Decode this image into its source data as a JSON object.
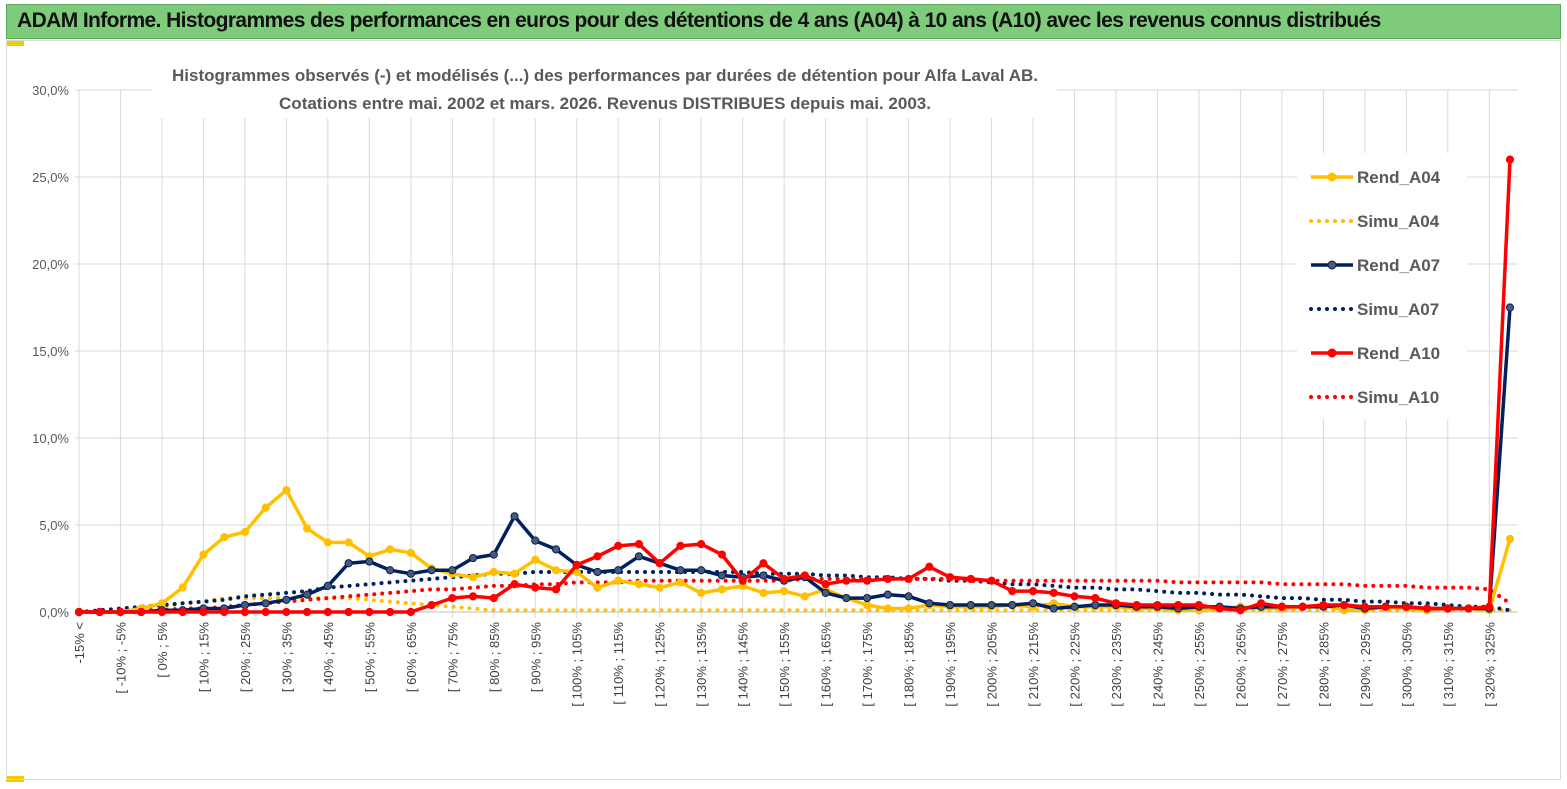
{
  "banner": {
    "title": "ADAM Informe. Histogrammes des performances en euros pour des détentions de 4 ans (A04) à 10 ans (A10) avec les revenus connus distribués"
  },
  "colors": {
    "banner_bg": "#7dcb7b",
    "A04": "#ffc000",
    "A07": "#002060",
    "A10": "#ff0000",
    "grid": "#d9d9d9",
    "axis_text": "#595959",
    "title_text": "#595959"
  },
  "chart_data": {
    "type": "line",
    "title": "Histogrammes observés (-) et modélisés (...) des performances par durées de détention pour Alfa Laval AB.",
    "subtitle": "Cotations entre mai. 2002 et mars. 2026. Revenus DISTRIBUES depuis mai. 2003.",
    "ylim": [
      0,
      30
    ],
    "yticks": [
      0,
      5,
      10,
      15,
      20,
      25,
      30
    ],
    "ytick_labels": [
      "0,0%",
      "5,0%",
      "10,0%",
      "15,0%",
      "20,0%",
      "25,0%",
      "30,0%"
    ],
    "legend_position": "right",
    "x_labels": [
      "-15% <",
      "[ -10% ; -5%",
      "[ 0% ; 5%",
      "[ 10% ; 15%",
      "[ 20% ; 25%",
      "[ 30% ; 35%",
      "[ 40% ; 45%",
      "[ 50% ; 55%",
      "[ 60% ; 65%",
      "[ 70% ; 75%",
      "[ 80% ; 85%",
      "[ 90% ; 95%",
      "[ 100% ; 105%",
      "[ 110% ; 115%",
      "[ 120% ; 125%",
      "[ 130% ; 135%",
      "[ 140% ; 145%",
      "[ 150% ; 155%",
      "[ 160% ; 165%",
      "[ 170% ; 175%",
      "[ 180% ; 185%",
      "[ 190% ; 195%",
      "[ 200% ; 205%",
      "[ 210% ; 215%",
      "[ 220% ; 225%",
      "[ 230% ; 235%",
      "[ 240% ; 245%",
      "[ 250% ; 255%",
      "[ 260% ; 265%",
      "[ 270% ; 275%",
      "[ 280% ; 285%",
      "[ 290% ; 295%",
      "[ 300% ; 305%",
      "[ 310% ; 315%",
      "[ 320% ; 325%"
    ],
    "x_label_indices": [
      0,
      2,
      4,
      6,
      8,
      10,
      12,
      14,
      16,
      18,
      20,
      22,
      24,
      26,
      28,
      30,
      32,
      34,
      36,
      38,
      40,
      42,
      44,
      46,
      48,
      50,
      52,
      54,
      56,
      58,
      60,
      62,
      64,
      66,
      68
    ],
    "n_points": 70,
    "series": [
      {
        "name": "Rend_A04",
        "style": "solid",
        "color": "#ffc000",
        "values": [
          0,
          0,
          0,
          0.2,
          0.5,
          1.4,
          3.3,
          4.3,
          4.6,
          6.0,
          7.0,
          4.8,
          4.0,
          4.0,
          3.2,
          3.6,
          3.4,
          2.5,
          2.2,
          2.0,
          2.3,
          2.2,
          3.0,
          2.4,
          2.3,
          1.4,
          1.8,
          1.6,
          1.4,
          1.7,
          1.1,
          1.3,
          1.5,
          1.1,
          1.2,
          0.9,
          1.3,
          0.8,
          0.4,
          0.2,
          0.2,
          0.4,
          0.3,
          0.3,
          0.3,
          0.4,
          0.3,
          0.5,
          0.3,
          0.3,
          0.3,
          0.2,
          0.2,
          0.1,
          0.1,
          0.2,
          0.3,
          0.2,
          0.2,
          0.3,
          0.4,
          0.1,
          0.1,
          0.3,
          0.2,
          0.1,
          0.2,
          0.2,
          0.1,
          4.2
        ]
      },
      {
        "name": "Simu_A04",
        "style": "dotted",
        "color": "#ffc000",
        "values": [
          0,
          0,
          0,
          0.1,
          0.3,
          0.5,
          0.6,
          0.8,
          0.8,
          0.8,
          0.8,
          0.8,
          0.8,
          0.8,
          0.7,
          0.6,
          0.5,
          0.4,
          0.3,
          0.2,
          0.1,
          0.1,
          0.1,
          0.1,
          0.1,
          0.1,
          0.1,
          0.1,
          0.1,
          0.1,
          0.1,
          0.1,
          0.1,
          0.1,
          0.1,
          0.1,
          0.1,
          0.1,
          0.1,
          0.1,
          0.1,
          0.1,
          0.1,
          0.1,
          0.1,
          0.1,
          0.1,
          0.1,
          0.1,
          0.1,
          0.1,
          0.1,
          0.1,
          0.1,
          0.1,
          0.1,
          0.1,
          0.1,
          0.1,
          0.1,
          0.1,
          0.1,
          0.1,
          0.1,
          0.1,
          0.1,
          0.1,
          0.1,
          0.1,
          0.1
        ]
      },
      {
        "name": "Rend_A07",
        "style": "solid",
        "color": "#002060",
        "values": [
          0,
          0,
          0,
          0,
          0.1,
          0.1,
          0.2,
          0.2,
          0.4,
          0.5,
          0.7,
          1.0,
          1.5,
          2.8,
          2.9,
          2.4,
          2.2,
          2.4,
          2.4,
          3.1,
          3.3,
          5.5,
          4.1,
          3.6,
          2.7,
          2.3,
          2.4,
          3.2,
          2.8,
          2.4,
          2.4,
          2.1,
          2.0,
          2.1,
          1.8,
          2.0,
          1.1,
          0.8,
          0.8,
          1.0,
          0.9,
          0.5,
          0.4,
          0.4,
          0.4,
          0.4,
          0.5,
          0.2,
          0.3,
          0.4,
          0.4,
          0.3,
          0.3,
          0.2,
          0.3,
          0.3,
          0.2,
          0.3,
          0.3,
          0.3,
          0.3,
          0.4,
          0.2,
          0.3,
          0.3,
          0.2,
          0.2,
          0.2,
          0.2,
          17.5
        ]
      },
      {
        "name": "Simu_A07",
        "style": "dotted",
        "color": "#002060",
        "values": [
          0,
          0.1,
          0.2,
          0.3,
          0.4,
          0.5,
          0.6,
          0.7,
          0.9,
          1.0,
          1.1,
          1.2,
          1.4,
          1.5,
          1.6,
          1.7,
          1.8,
          1.9,
          2.0,
          2.1,
          2.2,
          2.2,
          2.3,
          2.3,
          2.3,
          2.3,
          2.3,
          2.3,
          2.3,
          2.3,
          2.3,
          2.3,
          2.3,
          2.2,
          2.2,
          2.2,
          2.1,
          2.1,
          2.0,
          2.0,
          1.9,
          1.9,
          1.8,
          1.8,
          1.7,
          1.6,
          1.6,
          1.5,
          1.4,
          1.4,
          1.3,
          1.3,
          1.2,
          1.1,
          1.1,
          1.0,
          1.0,
          0.9,
          0.8,
          0.8,
          0.7,
          0.7,
          0.6,
          0.6,
          0.5,
          0.5,
          0.4,
          0.3,
          0.3,
          0.1
        ]
      },
      {
        "name": "Rend_A10",
        "style": "solid",
        "color": "#ff0000",
        "values": [
          0,
          0,
          0,
          0,
          0,
          0,
          0,
          0,
          0,
          0,
          0,
          0,
          0,
          0,
          0,
          0,
          0,
          0.4,
          0.8,
          0.9,
          0.8,
          1.6,
          1.4,
          1.3,
          2.7,
          3.2,
          3.8,
          3.9,
          2.8,
          3.8,
          3.9,
          3.3,
          1.8,
          2.8,
          1.9,
          2.1,
          1.6,
          1.8,
          1.8,
          1.9,
          1.9,
          2.6,
          2.0,
          1.9,
          1.8,
          1.2,
          1.2,
          1.1,
          0.9,
          0.8,
          0.5,
          0.4,
          0.4,
          0.4,
          0.4,
          0.2,
          0.1,
          0.5,
          0.3,
          0.3,
          0.4,
          0.4,
          0.3,
          0.3,
          0.3,
          0.2,
          0.2,
          0.2,
          0.3,
          26.0
        ]
      },
      {
        "name": "Simu_A10",
        "style": "dotted",
        "color": "#ff0000",
        "values": [
          0,
          0,
          0,
          0.1,
          0.1,
          0.2,
          0.2,
          0.3,
          0.4,
          0.5,
          0.6,
          0.7,
          0.8,
          0.9,
          1.0,
          1.1,
          1.2,
          1.3,
          1.3,
          1.4,
          1.5,
          1.5,
          1.6,
          1.6,
          1.7,
          1.7,
          1.7,
          1.8,
          1.8,
          1.8,
          1.8,
          1.8,
          1.8,
          1.8,
          1.8,
          1.9,
          1.9,
          1.9,
          1.9,
          1.9,
          1.9,
          1.9,
          1.9,
          1.8,
          1.8,
          1.8,
          1.8,
          1.8,
          1.8,
          1.8,
          1.8,
          1.8,
          1.8,
          1.7,
          1.7,
          1.7,
          1.7,
          1.7,
          1.6,
          1.6,
          1.6,
          1.6,
          1.5,
          1.5,
          1.5,
          1.4,
          1.4,
          1.4,
          1.3,
          0.5
        ]
      }
    ]
  }
}
